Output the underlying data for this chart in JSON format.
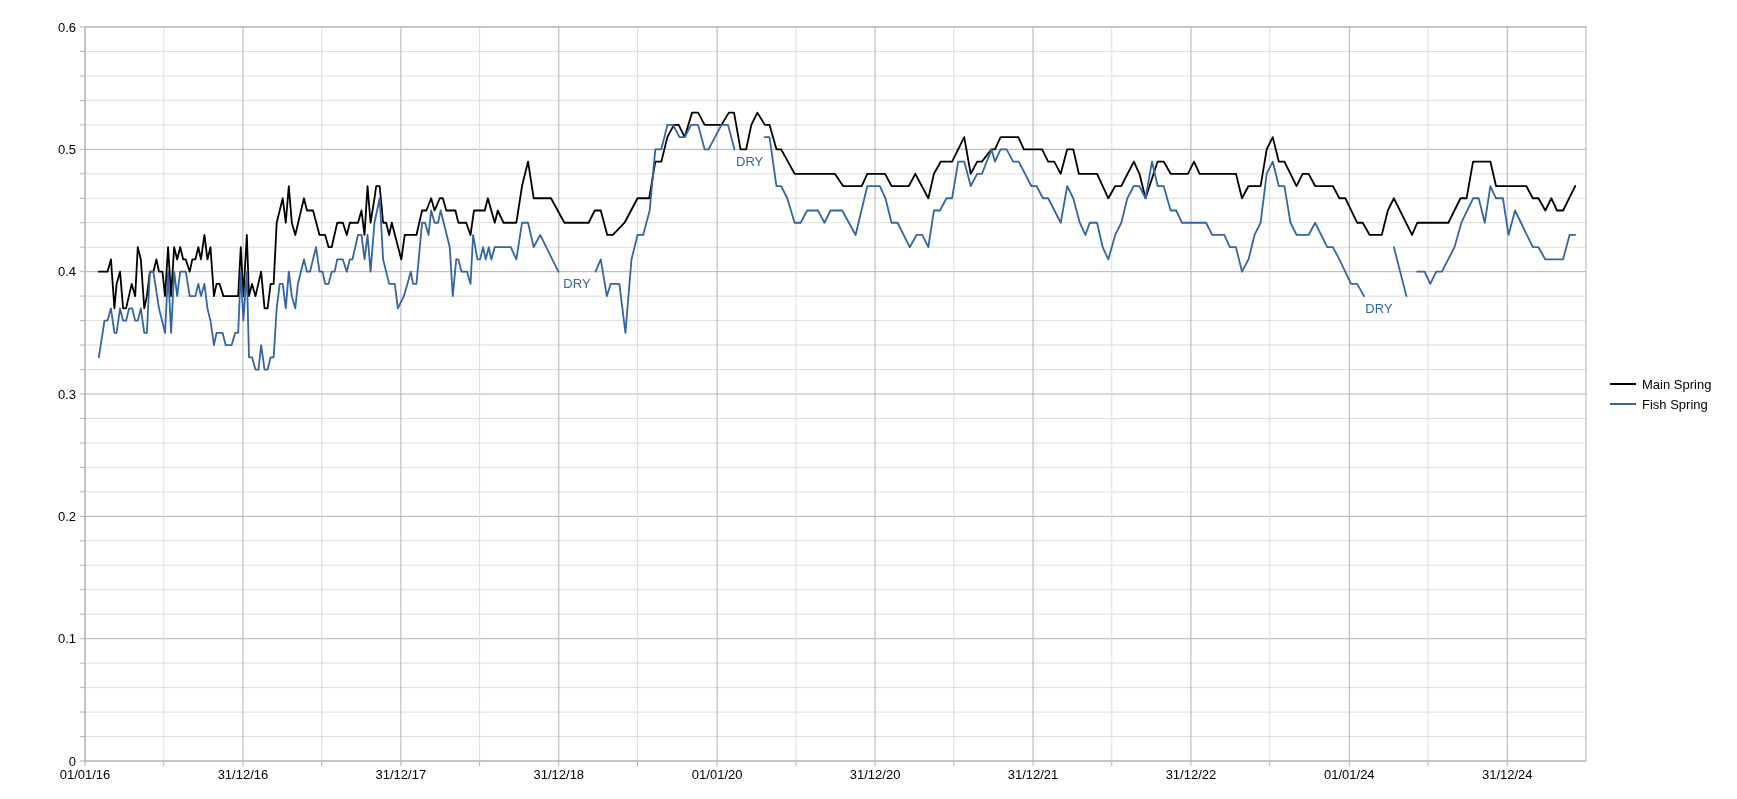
{
  "chart_data": {
    "type": "line",
    "xlim": [
      "2016-01-01",
      "2025-07-01"
    ],
    "ylim": [
      0,
      0.6
    ],
    "yticks": [
      0,
      {
        "value": 0.02,
        "label": null
      },
      {
        "value": 0.04,
        "label": null
      },
      {
        "value": 0.06,
        "label": null
      },
      {
        "value": 0.08,
        "label": null
      },
      0.1,
      {
        "value": 0.12,
        "label": null
      },
      {
        "value": 0.14,
        "label": null
      },
      {
        "value": 0.16,
        "label": null
      },
      {
        "value": 0.18,
        "label": null
      },
      0.2,
      {
        "value": 0.22,
        "label": null
      },
      {
        "value": 0.24,
        "label": null
      },
      {
        "value": 0.26,
        "label": null
      },
      {
        "value": 0.28,
        "label": null
      },
      0.3,
      {
        "value": 0.32,
        "label": null
      },
      {
        "value": 0.34,
        "label": null
      },
      {
        "value": 0.36,
        "label": null
      },
      {
        "value": 0.38,
        "label": null
      },
      0.4,
      {
        "value": 0.42,
        "label": null
      },
      {
        "value": 0.44,
        "label": null
      },
      {
        "value": 0.46,
        "label": null
      },
      {
        "value": 0.48,
        "label": null
      },
      0.5,
      {
        "value": 0.52,
        "label": null
      },
      {
        "value": 0.54,
        "label": null
      },
      {
        "value": 0.56,
        "label": null
      },
      {
        "value": 0.58,
        "label": null
      },
      0.6
    ],
    "xticks": [
      {
        "value": "2016-01-01",
        "label": "01/01/16"
      },
      {
        "value": "2016-07-01",
        "label": null
      },
      {
        "value": "2016-12-31",
        "label": "31/12/16"
      },
      {
        "value": "2017-07-01",
        "label": null
      },
      {
        "value": "2017-12-31",
        "label": "31/12/17"
      },
      {
        "value": "2018-07-01",
        "label": null
      },
      {
        "value": "2018-12-31",
        "label": "31/12/18"
      },
      {
        "value": "2019-07-01",
        "label": null
      },
      {
        "value": "2020-01-01",
        "label": "01/01/20"
      },
      {
        "value": "2020-07-01",
        "label": null
      },
      {
        "value": "2020-12-31",
        "label": "31/12/20"
      },
      {
        "value": "2021-07-01",
        "label": null
      },
      {
        "value": "2021-12-31",
        "label": "31/12/21"
      },
      {
        "value": "2022-07-01",
        "label": null
      },
      {
        "value": "2022-12-31",
        "label": "31/12/22"
      },
      {
        "value": "2023-07-01",
        "label": null
      },
      {
        "value": "2024-01-01",
        "label": "01/01/24"
      },
      {
        "value": "2024-07-01",
        "label": null
      },
      {
        "value": "2024-12-31",
        "label": "31/12/24"
      }
    ],
    "grid": true,
    "legend": "right",
    "marker": "none",
    "line_style": "solid",
    "annotations": [
      "DRY",
      "DRY",
      "DRY"
    ],
    "series": [
      {
        "name": "Main Spring",
        "color": "#000000",
        "x": [
          "2016-02-02",
          "2016-02-22",
          "2016-03-01",
          "2016-03-09",
          "2016-03-14",
          "2016-03-22",
          "2016-03-29",
          "2016-04-05",
          "2016-04-18",
          "2016-04-26",
          "2016-05-02",
          "2016-05-09",
          "2016-05-17",
          "2016-05-23",
          "2016-05-30",
          "2016-06-07",
          "2016-06-14",
          "2016-06-20",
          "2016-06-28",
          "2016-07-04",
          "2016-07-11",
          "2016-07-18",
          "2016-07-25",
          "2016-08-01",
          "2016-08-08",
          "2016-08-15",
          "2016-08-21",
          "2016-08-30",
          "2016-09-05",
          "2016-09-12",
          "2016-09-19",
          "2016-09-25",
          "2016-10-03",
          "2016-10-10",
          "2016-10-17",
          "2016-10-25",
          "2016-10-31",
          "2016-11-07",
          "2016-11-16",
          "2016-12-20",
          "2016-12-26",
          "2017-01-01",
          "2017-01-09",
          "2017-01-14",
          "2017-01-21",
          "2017-01-29",
          "2017-02-11",
          "2017-02-19",
          "2017-02-26",
          "2017-03-05",
          "2017-03-12",
          "2017-03-19",
          "2017-04-02",
          "2017-04-09",
          "2017-04-16",
          "2017-04-23",
          "2017-05-01",
          "2017-05-21",
          "2017-05-28",
          "2017-06-11",
          "2017-06-26",
          "2017-07-09",
          "2017-07-17",
          "2017-07-24",
          "2017-08-06",
          "2017-08-19",
          "2017-08-28",
          "2017-09-04",
          "2017-09-23",
          "2017-10-01",
          "2017-10-08",
          "2017-10-15",
          "2017-10-22",
          "2017-10-31",
          "2017-11-04",
          "2017-11-12",
          "2017-11-20",
          "2017-11-27",
          "2017-12-04",
          "2017-12-10",
          "2018-01-01",
          "2018-01-09",
          "2018-02-05",
          "2018-02-18",
          "2018-02-28",
          "2018-03-11",
          "2018-03-19",
          "2018-03-31",
          "2018-04-07",
          "2018-04-15",
          "2018-05-06",
          "2018-05-13",
          "2018-05-31",
          "2018-06-10",
          "2018-06-18",
          "2018-07-13",
          "2018-07-20",
          "2018-08-05",
          "2018-08-12",
          "2018-08-25",
          "2018-09-24",
          "2018-10-07",
          "2018-10-21",
          "2018-11-03",
          "2018-12-13",
          "2019-01-13",
          "2019-03-10",
          "2019-03-24",
          "2019-04-07",
          "2019-04-22",
          "2019-05-05",
          "2019-06-01",
          "2019-07-01",
          "2019-07-28",
          "2019-08-11",
          "2019-08-25",
          "2019-09-08",
          "2019-09-23",
          "2019-10-04",
          "2019-10-18",
          "2019-11-04",
          "2019-11-18",
          "2019-12-03",
          "2020-01-11",
          "2020-01-28",
          "2020-02-09",
          "2020-02-24",
          "2020-03-08",
          "2020-03-20",
          "2020-04-03",
          "2020-04-20",
          "2020-05-01",
          "2020-05-17",
          "2020-05-28",
          "2020-06-28",
          "2020-09-29",
          "2020-10-18",
          "2020-11-30",
          "2020-12-13",
          "2021-01-23",
          "2021-02-07",
          "2021-03-19",
          "2021-04-03",
          "2021-05-03",
          "2021-05-16",
          "2021-06-01",
          "2021-06-27",
          "2021-07-25",
          "2021-08-09",
          "2021-08-24",
          "2021-09-04",
          "2021-09-26",
          "2021-10-04",
          "2021-10-17",
          "2021-11-27",
          "2021-12-10",
          "2022-01-21",
          "2022-02-04",
          "2022-02-18",
          "2022-03-05",
          "2022-03-20",
          "2022-04-03",
          "2022-04-16",
          "2022-04-29",
          "2022-05-28",
          "2022-06-23",
          "2022-07-09",
          "2022-07-23",
          "2022-08-21",
          "2022-09-03",
          "2022-09-17",
          "2022-10-15",
          "2022-10-29",
          "2022-11-14",
          "2022-12-24",
          "2023-01-07",
          "2023-01-20",
          "2023-04-14",
          "2023-04-28",
          "2023-05-13",
          "2023-06-10",
          "2023-06-24",
          "2023-07-08",
          "2023-07-22",
          "2023-08-04",
          "2023-09-01",
          "2023-09-15",
          "2023-09-29",
          "2023-10-14",
          "2023-11-24",
          "2023-12-09",
          "2023-12-23",
          "2024-01-19",
          "2024-02-01",
          "2024-02-17",
          "2024-03-16",
          "2024-03-30",
          "2024-04-13",
          "2024-05-25",
          "2024-06-06",
          "2024-08-17",
          "2024-09-14",
          "2024-09-28",
          "2024-10-13",
          "2024-11-22",
          "2024-12-05",
          "2025-02-13",
          "2025-02-28",
          "2025-03-13",
          "2025-03-29",
          "2025-04-12",
          "2025-04-25",
          "2025-05-09",
          "2025-06-06"
        ],
        "values": [
          0.4,
          0.4,
          0.41,
          0.37,
          0.39,
          0.4,
          0.37,
          0.37,
          0.39,
          0.38,
          0.42,
          0.41,
          0.37,
          0.38,
          0.4,
          0.4,
          0.41,
          0.4,
          0.4,
          0.38,
          0.42,
          0.38,
          0.42,
          0.41,
          0.42,
          0.41,
          0.41,
          0.4,
          0.41,
          0.41,
          0.42,
          0.41,
          0.43,
          0.41,
          0.42,
          0.38,
          0.39,
          0.39,
          0.38,
          0.38,
          0.42,
          0.38,
          0.43,
          0.38,
          0.39,
          0.38,
          0.4,
          0.37,
          0.37,
          0.39,
          0.39,
          0.44,
          0.46,
          0.44,
          0.47,
          0.44,
          0.43,
          0.46,
          0.45,
          0.45,
          0.43,
          0.43,
          0.42,
          0.42,
          0.44,
          0.44,
          0.43,
          0.44,
          0.44,
          0.45,
          0.43,
          0.47,
          0.44,
          0.46,
          0.47,
          0.47,
          0.44,
          0.44,
          0.43,
          0.44,
          0.41,
          0.43,
          0.43,
          0.45,
          0.45,
          0.46,
          0.45,
          0.46,
          0.46,
          0.45,
          0.45,
          0.44,
          0.44,
          0.43,
          0.45,
          0.45,
          0.46,
          0.44,
          0.45,
          0.44,
          0.44,
          0.47,
          0.49,
          0.46,
          0.46,
          0.44,
          0.44,
          0.45,
          0.45,
          0.43,
          0.43,
          0.44,
          0.46,
          0.46,
          0.49,
          0.49,
          0.51,
          0.52,
          0.52,
          0.51,
          0.53,
          0.53,
          0.52,
          0.52,
          0.53,
          0.53,
          0.5,
          0.5,
          0.52,
          0.53,
          0.52,
          0.52,
          0.5,
          0.5,
          0.48,
          0.48,
          0.47,
          0.47,
          0.48,
          0.48,
          0.47,
          0.47,
          0.48,
          0.46,
          0.48,
          0.49,
          0.49,
          0.51,
          0.48,
          0.49,
          0.49,
          0.5,
          0.5,
          0.51,
          0.51,
          0.5,
          0.5,
          0.49,
          0.49,
          0.48,
          0.5,
          0.5,
          0.48,
          0.48,
          0.48,
          0.46,
          0.47,
          0.47,
          0.49,
          0.48,
          0.46,
          0.49,
          0.49,
          0.48,
          0.48,
          0.49,
          0.48,
          0.48,
          0.46,
          0.47,
          0.47,
          0.5,
          0.51,
          0.49,
          0.49,
          0.47,
          0.48,
          0.48,
          0.47,
          0.47,
          0.46,
          0.46,
          0.44,
          0.44,
          0.43,
          0.43,
          0.45,
          0.46,
          0.43,
          0.44,
          0.44,
          0.46,
          0.46,
          0.49,
          0.49,
          0.47,
          0.47,
          0.46,
          0.46,
          0.45,
          0.46,
          0.45,
          0.45,
          0.47
        ]
      },
      {
        "name": "Fish Spring",
        "color": "#3465a4",
        "x": [
          "2016-02-02",
          "2016-02-15",
          "2016-02-22",
          "2016-03-01",
          "2016-03-09",
          "2016-03-14",
          "2016-03-22",
          "2016-03-29",
          "2016-04-05",
          "2016-04-12",
          "2016-04-19",
          "2016-04-26",
          "2016-05-02",
          "2016-05-09",
          "2016-05-17",
          "2016-05-23",
          "2016-05-30",
          "2016-06-07",
          "2016-06-20",
          "2016-07-04",
          "2016-07-11",
          "2016-07-18",
          "2016-07-25",
          "2016-08-01",
          "2016-08-08",
          "2016-08-21",
          "2016-08-30",
          "2016-09-12",
          "2016-09-19",
          "2016-09-25",
          "2016-10-03",
          "2016-10-10",
          "2016-10-17",
          "2016-10-25",
          "2016-10-31",
          "2016-11-14",
          "2016-11-21",
          "2016-12-05",
          "2016-12-13",
          "2016-12-20",
          "2016-12-26",
          "2017-01-01",
          "2017-01-09",
          "2017-01-14",
          "2017-01-21",
          "2017-01-29",
          "2017-02-05",
          "2017-02-11",
          "2017-02-19",
          "2017-02-26",
          "2017-03-05",
          "2017-03-12",
          "2017-03-19",
          "2017-03-26",
          "2017-04-02",
          "2017-04-09",
          "2017-04-16",
          "2017-04-23",
          "2017-05-01",
          "2017-05-07",
          "2017-05-21",
          "2017-05-28",
          "2017-06-04",
          "2017-06-18",
          "2017-06-26",
          "2017-07-03",
          "2017-07-09",
          "2017-07-17",
          "2017-07-24",
          "2017-07-31",
          "2017-08-06",
          "2017-08-19",
          "2017-08-28",
          "2017-09-04",
          "2017-09-10",
          "2017-09-23",
          "2017-10-01",
          "2017-10-08",
          "2017-10-15",
          "2017-10-22",
          "2017-10-31",
          "2017-11-12",
          "2017-11-20",
          "2017-12-04",
          "2017-12-17",
          "2017-12-24",
          "2018-01-07",
          "2018-01-23",
          "2018-01-28",
          "2018-02-05",
          "2018-02-18",
          "2018-02-25",
          "2018-03-05",
          "2018-03-11",
          "2018-03-19",
          "2018-03-27",
          "2018-04-02",
          "2018-04-23",
          "2018-04-30",
          "2018-05-08",
          "2018-05-13",
          "2018-05-20",
          "2018-06-02",
          "2018-06-10",
          "2018-06-16",
          "2018-06-26",
          "2018-07-02",
          "2018-07-09",
          "2018-07-15",
          "2018-07-22",
          "2018-07-28",
          "2018-08-05",
          "2018-09-11",
          "2018-09-24",
          "2018-10-07",
          "2018-10-21",
          "2018-11-03",
          "2018-11-18",
          "2018-12-30",
          "2019-01-31",
          "2019-03-26",
          "2019-04-07",
          "2019-04-21",
          "2019-04-30",
          "2019-05-08",
          "2019-05-20",
          "2019-06-03",
          "2019-06-17",
          "2019-07-01",
          "2019-07-14",
          "2019-07-29",
          "2019-08-11",
          "2019-08-25",
          "2019-09-08",
          "2019-09-21",
          "2019-10-06",
          "2019-10-18",
          "2019-11-02",
          "2019-11-18",
          "2019-12-03",
          "2019-12-12",
          "2020-01-11",
          "2020-01-26",
          "2020-02-10",
          "2020-03-15",
          "2020-04-20",
          "2020-05-01",
          "2020-05-17",
          "2020-05-28",
          "2020-06-11",
          "2020-06-28",
          "2020-07-12",
          "2020-07-27",
          "2020-08-21",
          "2020-09-05",
          "2020-09-19",
          "2020-09-29",
          "2020-10-16",
          "2020-11-16",
          "2020-12-13",
          "2021-01-11",
          "2021-01-24",
          "2021-02-07",
          "2021-02-21",
          "2021-03-21",
          "2021-04-06",
          "2021-04-19",
          "2021-05-03",
          "2021-05-16",
          "2021-05-30",
          "2021-06-14",
          "2021-06-27",
          "2021-07-11",
          "2021-07-25",
          "2021-08-09",
          "2021-08-24",
          "2021-09-04",
          "2021-09-26",
          "2021-10-04",
          "2021-10-17",
          "2021-10-31",
          "2021-11-15",
          "2021-11-28",
          "2021-12-27",
          "2022-01-08",
          "2022-01-23",
          "2022-02-04",
          "2022-03-05",
          "2022-03-20",
          "2022-04-03",
          "2022-04-18",
          "2022-05-01",
          "2022-05-11",
          "2022-05-16",
          "2022-05-28",
          "2022-06-10",
          "2022-06-23",
          "2022-07-09",
          "2022-07-23",
          "2022-08-06",
          "2022-08-21",
          "2022-09-03",
          "2022-09-17",
          "2022-10-02",
          "2022-10-15",
          "2022-10-29",
          "2022-11-14",
          "2022-11-27",
          "2022-12-10",
          "2023-02-04",
          "2023-02-18",
          "2023-03-18",
          "2023-03-31",
          "2023-04-14",
          "2023-04-28",
          "2023-05-13",
          "2023-05-27",
          "2023-06-10",
          "2023-06-24",
          "2023-07-08",
          "2023-07-22",
          "2023-08-04",
          "2023-08-18",
          "2023-09-01",
          "2023-09-29",
          "2023-10-14",
          "2023-11-11",
          "2023-11-24",
          "2023-12-09",
          "2024-01-05",
          "2024-01-19",
          "2024-02-04",
          "2024-03-10",
          "2024-04-13",
          "2024-05-12",
          "2024-05-25",
          "2024-06-06",
          "2024-06-23",
          "2024-07-06",
          "2024-07-20",
          "2024-08-02",
          "2024-08-31",
          "2024-09-16",
          "2024-10-13",
          "2024-10-26",
          "2024-11-09",
          "2024-11-22",
          "2024-12-05",
          "2024-12-21",
          "2025-01-03",
          "2025-01-18",
          "2025-02-28",
          "2025-03-13",
          "2025-03-29",
          "2025-05-09",
          "2025-05-24",
          "2025-06-06"
        ],
        "values": [
          0.33,
          0.36,
          0.36,
          0.37,
          0.35,
          0.35,
          0.37,
          0.36,
          0.36,
          0.37,
          0.37,
          0.36,
          0.36,
          0.37,
          0.35,
          0.35,
          0.4,
          0.4,
          0.37,
          0.35,
          0.4,
          0.35,
          0.4,
          0.38,
          0.4,
          0.4,
          0.38,
          0.38,
          0.39,
          0.38,
          0.39,
          0.37,
          0.36,
          0.34,
          0.35,
          0.35,
          0.34,
          0.34,
          0.35,
          0.35,
          0.4,
          0.36,
          0.4,
          0.33,
          0.33,
          0.32,
          0.32,
          0.34,
          0.32,
          0.32,
          0.33,
          0.33,
          0.37,
          0.39,
          0.39,
          0.37,
          0.4,
          0.38,
          0.37,
          0.39,
          0.41,
          0.4,
          0.4,
          0.42,
          0.4,
          0.4,
          0.39,
          0.39,
          0.4,
          0.4,
          0.41,
          0.41,
          0.4,
          0.41,
          0.41,
          0.43,
          0.43,
          0.41,
          0.43,
          0.4,
          0.44,
          0.46,
          0.41,
          0.39,
          0.39,
          0.37,
          0.38,
          0.4,
          0.39,
          0.39,
          0.44,
          0.44,
          0.43,
          0.45,
          0.44,
          0.44,
          0.45,
          0.42,
          0.38,
          0.41,
          0.41,
          0.4,
          0.4,
          0.39,
          0.43,
          0.41,
          0.41,
          0.42,
          0.41,
          0.42,
          0.41,
          0.42,
          0.42,
          0.41,
          0.44,
          0.44,
          0.42,
          0.43,
          0.4,
          null,
          0.4,
          0.41,
          0.38,
          0.39,
          0.39,
          0.39,
          0.35,
          0.41,
          0.43,
          0.43,
          0.45,
          0.5,
          0.5,
          0.52,
          0.52,
          0.51,
          0.51,
          0.52,
          0.52,
          0.5,
          0.5,
          0.52,
          0.52,
          0.5,
          null,
          0.51,
          0.51,
          0.47,
          0.47,
          0.46,
          0.44,
          0.44,
          0.45,
          0.45,
          0.44,
          0.45,
          0.45,
          0.45,
          0.43,
          0.47,
          0.47,
          0.46,
          0.44,
          0.44,
          0.42,
          0.43,
          0.43,
          0.42,
          0.45,
          0.45,
          0.46,
          0.46,
          0.49,
          0.49,
          0.47,
          0.48,
          0.48,
          0.5,
          0.49,
          0.5,
          0.5,
          0.49,
          0.49,
          0.47,
          0.47,
          0.46,
          0.46,
          0.44,
          0.47,
          0.46,
          0.44,
          0.43,
          0.44,
          0.44,
          0.44,
          0.42,
          0.41,
          0.43,
          0.44,
          0.46,
          0.47,
          0.47,
          0.46,
          0.49,
          0.47,
          0.47,
          0.45,
          0.45,
          0.44,
          0.44,
          0.43,
          0.43,
          0.42,
          0.42,
          0.4,
          0.41,
          0.43,
          0.44,
          0.48,
          0.49,
          0.47,
          0.47,
          0.44,
          0.43,
          0.43,
          0.44,
          0.42,
          0.42,
          0.41,
          0.39,
          0.39,
          0.38,
          null,
          0.42,
          0.38,
          null,
          0.4,
          0.4,
          0.39,
          0.4,
          0.4,
          0.42,
          0.44,
          0.46,
          0.46,
          0.44,
          0.47,
          0.46,
          0.46,
          0.43,
          0.45,
          0.42,
          0.42,
          0.41,
          0.41,
          0.43,
          0.43
        ]
      }
    ]
  }
}
